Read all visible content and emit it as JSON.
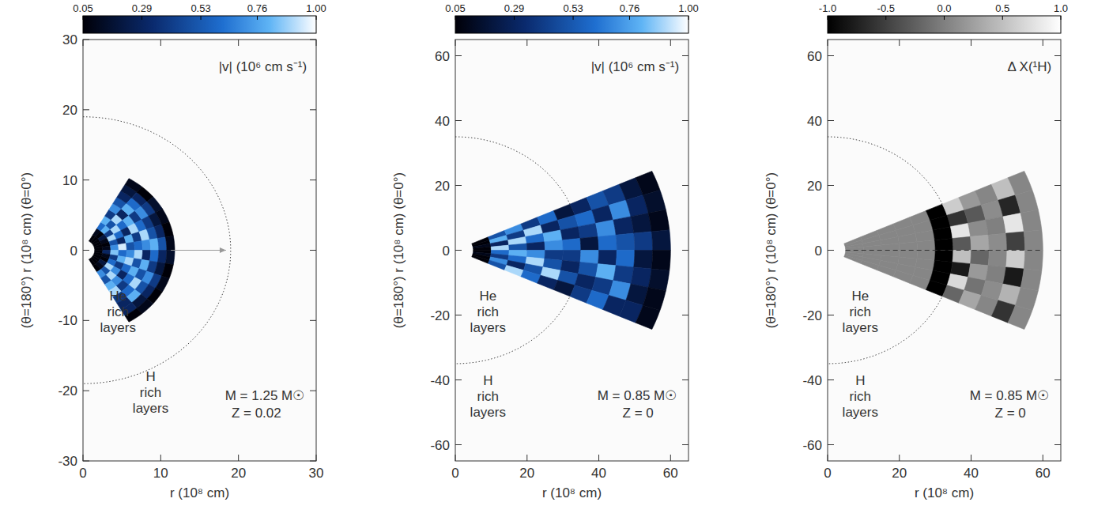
{
  "chart_data": [
    {
      "type": "heatmap",
      "color": "blue",
      "x_label": "r (10⁸ cm)",
      "y_label": "(θ=180°)  r (10⁸ cm)  (θ=0°)",
      "xlim": [
        0,
        30
      ],
      "ylim": [
        -30,
        30
      ],
      "xticks": [
        0,
        10,
        20,
        30
      ],
      "yticks": [
        -30,
        -20,
        -10,
        0,
        10,
        20,
        30
      ],
      "rlim": [
        1.5,
        11.8
      ],
      "thetalim": [
        30,
        150
      ],
      "boundary_r": 19,
      "colorbar": {
        "range": [
          0.05,
          1
        ],
        "ticks": [
          0.05,
          0.29,
          0.53,
          0.76,
          {
            "value": 1,
            "label": "1.00"
          }
        ]
      },
      "labels": {
        "quantity": "|v| (10⁶ cm s⁻¹)",
        "inner": [
          "He",
          "rich",
          "layers"
        ],
        "outer": [
          "H",
          "rich",
          "layers"
        ],
        "mass": "M = 1.25 M☉",
        "metallicity": "Z = 0.02"
      },
      "cells": [
        [
          0.05,
          0.05,
          0.05,
          0.05,
          0.05,
          0.05,
          0.05,
          0.05,
          0.05,
          0.05,
          0.05,
          0.05
        ],
        [
          0.1,
          0.05,
          0.2,
          0.1,
          0.05,
          0.1,
          0.3,
          0.1,
          0.05,
          0.2,
          0.1,
          0.05
        ],
        [
          0.6,
          0.8,
          0.4,
          0.9,
          0.5,
          0.7,
          0.85,
          0.4,
          0.6,
          0.9,
          0.5,
          0.7
        ],
        [
          0.8,
          0.5,
          0.9,
          0.6,
          0.3,
          0.95,
          0.6,
          0.8,
          0.4,
          0.7,
          0.9,
          0.5
        ],
        [
          0.4,
          0.9,
          0.6,
          0.3,
          0.8,
          0.5,
          0.7,
          0.9,
          0.6,
          0.3,
          0.7,
          0.8
        ],
        [
          0.7,
          0.3,
          0.8,
          0.9,
          0.4,
          0.6,
          0.9,
          0.5,
          0.8,
          0.6,
          0.4,
          0.9
        ],
        [
          0.5,
          0.8,
          0.4,
          0.6,
          0.9,
          0.7,
          0.3,
          0.8,
          0.5,
          0.9,
          0.6,
          0.4
        ],
        [
          0.3,
          0.6,
          0.7,
          0.4,
          0.5,
          0.8,
          0.6,
          0.4,
          0.7,
          0.5,
          0.8,
          0.3
        ],
        [
          0.2,
          0.3,
          0.4,
          0.2,
          0.3,
          0.5,
          0.3,
          0.2,
          0.4,
          0.3,
          0.2,
          0.3
        ],
        [
          0.1,
          0.05,
          0.15,
          0.1,
          0.05,
          0.1,
          0.15,
          0.05,
          0.1,
          0.05,
          0.1,
          0.05
        ]
      ]
    },
    {
      "type": "heatmap",
      "color": "blue",
      "x_label": "r (10⁸ cm)",
      "y_label": "(θ=180°)  r (10⁸ cm)  (θ=0°)",
      "xlim": [
        0,
        65
      ],
      "ylim": [
        -65,
        65
      ],
      "xticks": [
        0,
        20,
        40,
        60
      ],
      "yticks": [
        -60,
        -40,
        -20,
        0,
        20,
        40,
        60
      ],
      "rlim": [
        5,
        60
      ],
      "thetalim": [
        66,
        114
      ],
      "boundary_r": 35,
      "colorbar": {
        "range": [
          0.05,
          1
        ],
        "ticks": [
          0.05,
          0.29,
          0.53,
          0.76,
          {
            "value": 1,
            "label": "1.00"
          }
        ]
      },
      "labels": {
        "quantity": "|v| (10⁶ cm s⁻¹)",
        "inner": [
          "He",
          "rich",
          "layers"
        ],
        "outer": [
          "H",
          "rich",
          "layers"
        ],
        "mass": "M = 0.85 M☉",
        "metallicity": "Z = 0"
      },
      "cells": [
        [
          0.05,
          0.05,
          0.1,
          0.05,
          0.05,
          0.1,
          0.05,
          0.05
        ],
        [
          0.5,
          0.8,
          0.3,
          0.9,
          0.6,
          0.4,
          0.7,
          0.5
        ],
        [
          0.7,
          0.4,
          0.9,
          0.5,
          0.8,
          0.6,
          0.3,
          0.9
        ],
        [
          0.4,
          0.9,
          0.6,
          0.3,
          0.7,
          0.9,
          0.5,
          0.6
        ],
        [
          0.6,
          0.3,
          0.8,
          0.7,
          0.4,
          0.5,
          0.9,
          0.3
        ],
        [
          0.2,
          0.5,
          0.3,
          0.6,
          0.4,
          0.3,
          0.5,
          0.2
        ],
        [
          0.3,
          0.6,
          0.4,
          0.2,
          0.7,
          0.5,
          0.3,
          0.4
        ],
        [
          0.5,
          0.3,
          0.7,
          0.6,
          0.3,
          0.8,
          0.4,
          0.6
        ],
        [
          0.4,
          0.7,
          0.3,
          0.5,
          0.6,
          0.4,
          0.7,
          0.3
        ],
        [
          0.2,
          0.3,
          0.2,
          0.4,
          0.2,
          0.3,
          0.2,
          0.3
        ],
        [
          0.1,
          0.15,
          0.1,
          0.2,
          0.1,
          0.15,
          0.1,
          0.1
        ]
      ]
    },
    {
      "type": "heatmap",
      "color": "gray",
      "x_label": "r (10⁸ cm)",
      "y_label": "(θ=180°)  r (10⁸ cm)  (θ=0°)",
      "xlim": [
        0,
        65
      ],
      "ylim": [
        -65,
        65
      ],
      "xticks": [
        0,
        20,
        40,
        60
      ],
      "yticks": [
        -60,
        -40,
        -20,
        0,
        20,
        40,
        60
      ],
      "rlim": [
        5,
        60
      ],
      "thetalim": [
        66,
        114
      ],
      "boundary_r": 35,
      "colorbar": {
        "range": [
          -1,
          1
        ],
        "ticks": [
          {
            "value": -1,
            "label": "-1.0"
          },
          -0.5,
          {
            "value": 0,
            "label": "0.0"
          },
          0.5,
          {
            "value": 1,
            "label": "1.0"
          }
        ]
      },
      "labels": {
        "quantity": "Δ X(¹H)",
        "inner": [
          "He",
          "rich",
          "layers"
        ],
        "outer": [
          "H",
          "rich",
          "layers"
        ],
        "mass": "M = 0.85 M☉",
        "metallicity": "Z = 0"
      },
      "cells": [
        [
          0.05,
          0.05,
          0.05,
          0.05,
          0.05,
          0.05,
          0.05,
          0.05
        ],
        [
          0.05,
          0.05,
          0.05,
          0.05,
          0.05,
          0.05,
          0.05,
          0.05
        ],
        [
          0.05,
          0.05,
          0.05,
          0.05,
          0.05,
          0.05,
          0.05,
          0.05
        ],
        [
          0.05,
          0.05,
          0.05,
          0.05,
          0.05,
          0.05,
          0.05,
          0.05
        ],
        [
          0.05,
          0.05,
          0.05,
          0.05,
          0.05,
          0.05,
          0.05,
          0.05
        ],
        [
          -1,
          -1,
          -1,
          -1,
          -1,
          -1,
          -1,
          -1
        ],
        [
          0.6,
          -0.6,
          0.8,
          -0.3,
          0.5,
          -0.8,
          0.7,
          -0.2
        ],
        [
          0.2,
          -0.3,
          0.1,
          0.3,
          -0.2,
          0.2,
          -0.1,
          0.3
        ],
        [
          0.05,
          0.1,
          0.0,
          0.1,
          0.05,
          0.0,
          0.1,
          0.05
        ],
        [
          0.5,
          -0.7,
          0.8,
          -0.5,
          0.6,
          -0.8,
          0.4,
          -0.6
        ],
        [
          0.05,
          0.05,
          0.05,
          0.05,
          0.05,
          0.05,
          0.05,
          0.05
        ]
      ]
    }
  ]
}
